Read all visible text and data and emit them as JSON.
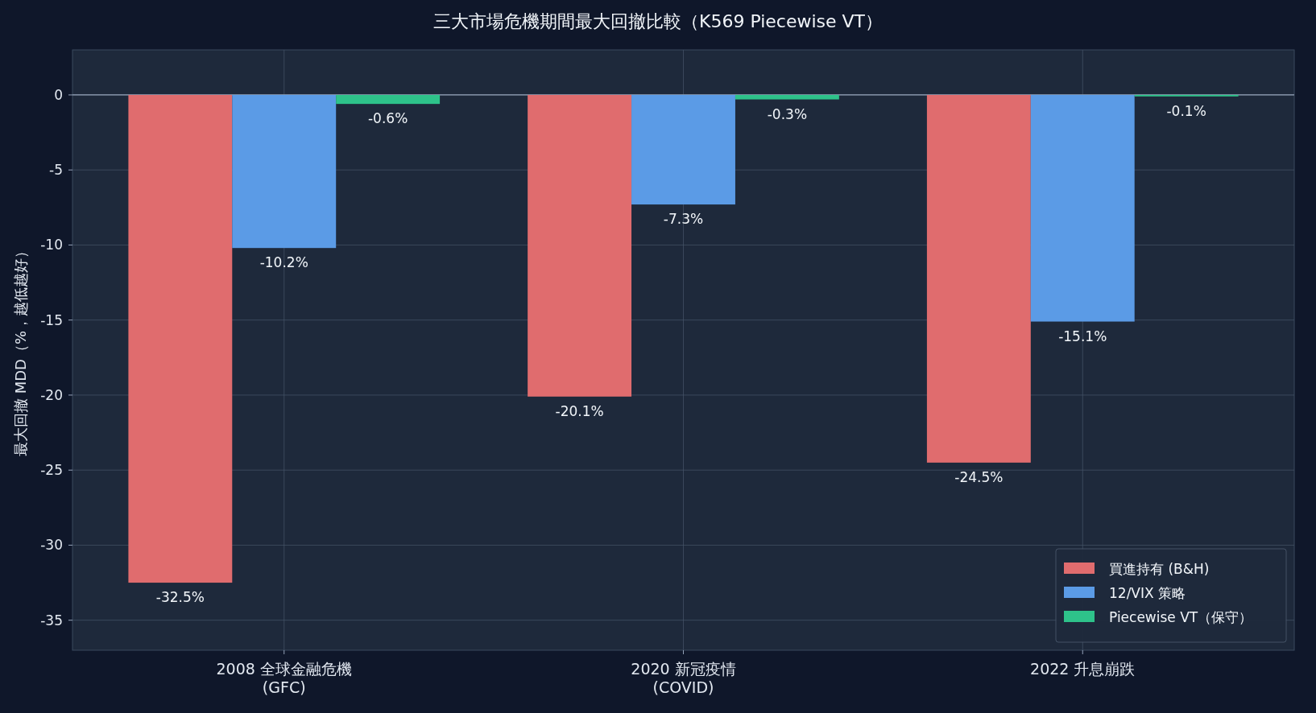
{
  "chart_data": {
    "type": "bar",
    "title": "三大市場危機期間最大回撤比較（K569 Piecewise VT）",
    "ylabel": "最大回撤 MDD（%，越低越好）",
    "categories": [
      "2008 全球金融危機\n(GFC)",
      "2020 新冠疫情\n(COVID)",
      "2022 升息崩跌"
    ],
    "series": [
      {
        "name": "買進持有 (B&H)",
        "color": "#e06c6e",
        "values": [
          -32.5,
          -20.1,
          -24.5
        ],
        "value_labels": [
          "-32.5%",
          "-20.1%",
          "-24.5%"
        ]
      },
      {
        "name": "12/VIX 策略",
        "color": "#5b9be6",
        "values": [
          -10.2,
          -7.3,
          -15.1
        ],
        "value_labels": [
          "-10.2%",
          "-7.3%",
          "-15.1%"
        ]
      },
      {
        "name": "Piecewise VT（保守）",
        "color": "#2ec28a",
        "values": [
          -0.6,
          -0.3,
          -0.1
        ],
        "value_labels": [
          "-0.6%",
          "-0.3%",
          "-0.1%"
        ]
      }
    ],
    "ylim": [
      -37,
      3
    ],
    "yticks": [
      -35,
      -30,
      -25,
      -20,
      -15,
      -10,
      -5,
      0
    ],
    "grid": true,
    "legend": "bottom right",
    "ref_lines": [
      {
        "axis": "y",
        "value": 0,
        "color": "#94a3b8"
      }
    ]
  }
}
